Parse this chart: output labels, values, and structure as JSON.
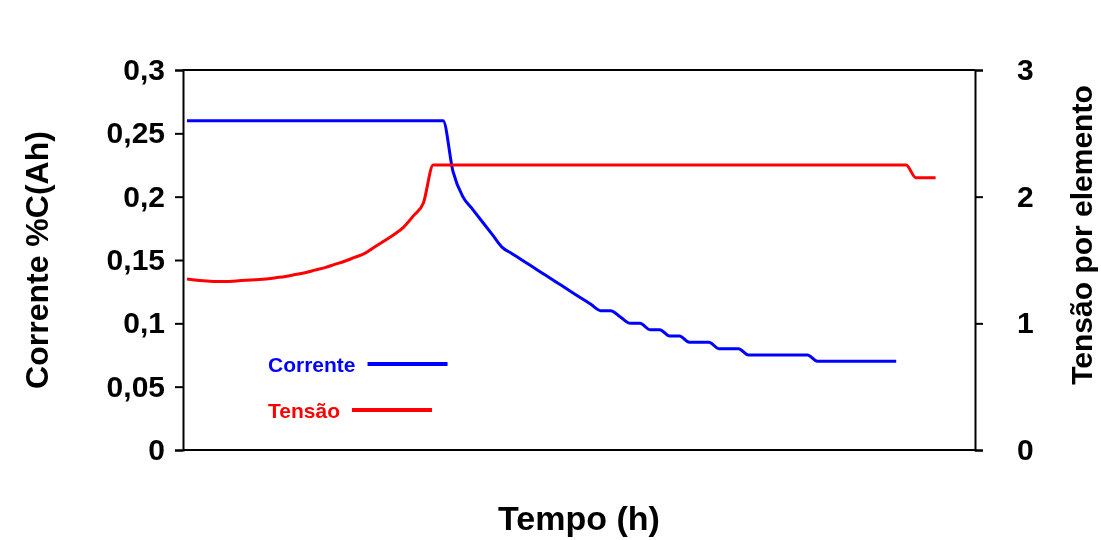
{
  "chart_data": {
    "type": "line",
    "xlabel": "Tempo (h)",
    "ylabel": "Corrente %C(Ah)",
    "y2label": "Tensão por elemento",
    "categories": [
      null,
      null,
      null,
      null,
      null,
      null,
      null,
      null,
      null,
      null,
      null,
      null,
      null,
      null,
      null,
      null,
      null,
      null,
      null,
      null,
      null,
      null,
      null,
      null,
      null,
      null,
      null,
      null,
      null,
      null,
      null,
      null,
      null,
      null,
      null,
      null,
      null,
      null,
      null,
      null,
      null,
      null,
      null,
      null,
      null,
      null,
      null,
      null,
      null,
      null,
      null,
      null,
      null,
      null,
      null,
      null,
      null,
      null,
      null,
      null,
      null,
      null,
      null,
      null,
      null,
      null,
      null,
      null,
      null,
      null,
      null,
      null,
      null,
      null,
      null,
      null,
      null,
      null,
      null,
      null,
      null
    ],
    "ylim": [
      0,
      0.3
    ],
    "yticks": [
      0,
      {
        "value": 0.05,
        "label": "0,05"
      },
      {
        "value": 0.1,
        "label": "0,1"
      },
      {
        "value": 0.15,
        "label": "0,15"
      },
      {
        "value": 0.2,
        "label": "0,2"
      },
      {
        "value": 0.25,
        "label": "0,25"
      },
      {
        "value": 0.3,
        "label": "0,3"
      }
    ],
    "y2lim": [
      0,
      3
    ],
    "y2ticks": [
      0,
      1,
      2,
      3
    ],
    "grid": false,
    "legend": "bottom left",
    "marker": "none",
    "line_style": "solid",
    "series": [
      {
        "name": "Corrente",
        "color": "#0000ff",
        "values": [
          0.26,
          0.26,
          0.26,
          0.26,
          0.26,
          0.26,
          0.26,
          0.26,
          0.26,
          0.26,
          0.26,
          0.26,
          0.26,
          0.26,
          0.26,
          0.26,
          0.26,
          0.26,
          0.26,
          0.26,
          0.26,
          0.26,
          0.26,
          0.26,
          0.26,
          0.26,
          0.26,
          0.22,
          0.2,
          0.19,
          0.18,
          0.17,
          0.16,
          0.155,
          0.15,
          0.145,
          0.14,
          0.135,
          0.13,
          0.125,
          0.12,
          0.115,
          0.11,
          0.11,
          0.105,
          0.1,
          0.1,
          0.095,
          0.095,
          0.09,
          0.09,
          0.085,
          0.085,
          0.085,
          0.08,
          0.08,
          0.08,
          0.075,
          0.075,
          0.075,
          0.075,
          0.075,
          0.075,
          0.075,
          0.07,
          0.07,
          0.07,
          0.07,
          0.07,
          0.07,
          0.07,
          0.07,
          0.07,
          null,
          null,
          null,
          null,
          null,
          null,
          null,
          null
        ]
      },
      {
        "name": "Tensão",
        "color": "#ff0000",
        "axis": "y2",
        "values": [
          1.35,
          1.34,
          1.335,
          1.33,
          1.33,
          1.335,
          1.34,
          1.345,
          1.35,
          1.36,
          1.37,
          1.385,
          1.4,
          1.42,
          1.44,
          1.465,
          1.49,
          1.52,
          1.55,
          1.6,
          1.65,
          1.7,
          1.76,
          1.85,
          1.95,
          2.25,
          2.25,
          2.25,
          2.25,
          2.25,
          2.25,
          2.25,
          2.25,
          2.25,
          2.25,
          2.25,
          2.25,
          2.25,
          2.25,
          2.25,
          2.25,
          2.25,
          2.25,
          2.25,
          2.25,
          2.25,
          2.25,
          2.25,
          2.25,
          2.25,
          2.25,
          2.25,
          2.25,
          2.25,
          2.25,
          2.25,
          2.25,
          2.25,
          2.25,
          2.25,
          2.25,
          2.25,
          2.25,
          2.25,
          2.25,
          2.25,
          2.25,
          2.25,
          2.25,
          2.25,
          2.25,
          2.25,
          2.25,
          2.25,
          2.15,
          2.15,
          2.15,
          null,
          null,
          null,
          null
        ]
      }
    ]
  }
}
